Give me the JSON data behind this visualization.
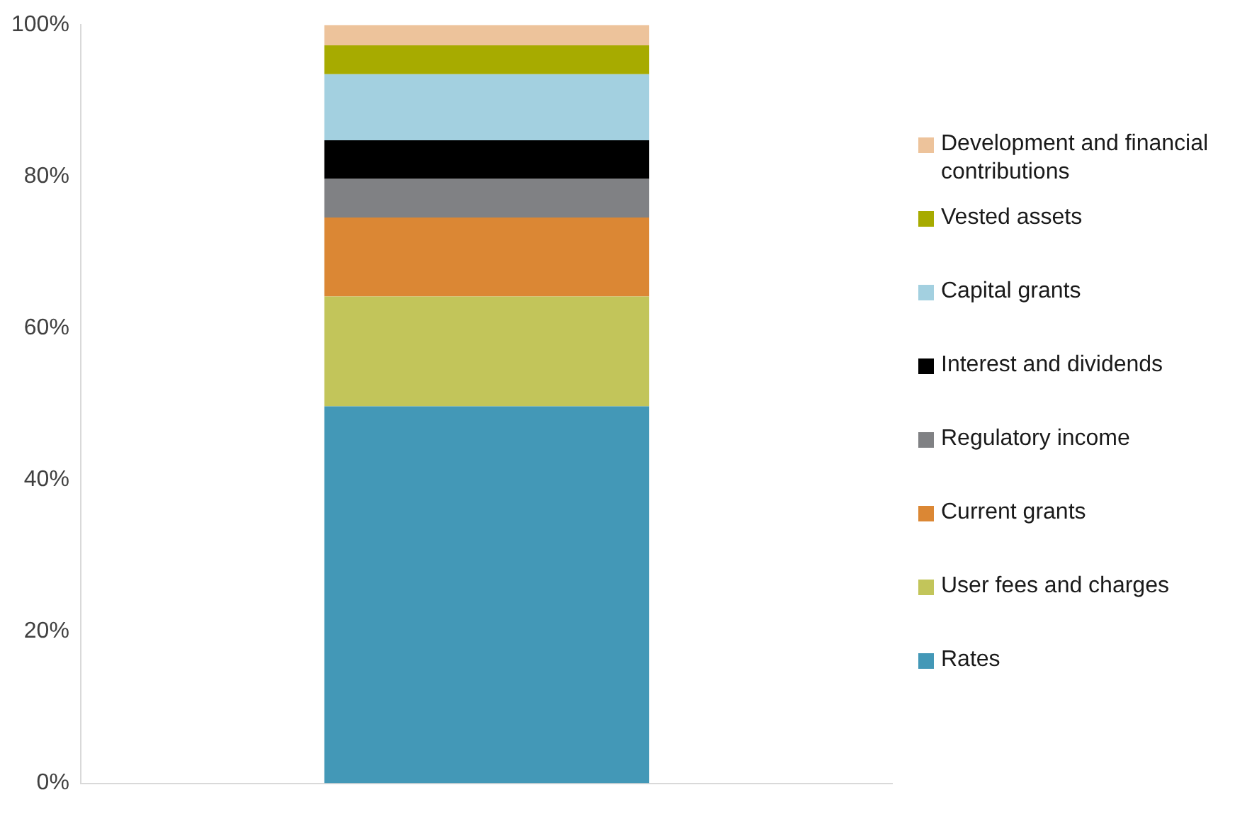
{
  "chart_data": {
    "type": "bar",
    "stacked": true,
    "categories": [
      null
    ],
    "series": [
      {
        "name": "Rates",
        "color": "#4398b7",
        "values": [
          49.7
        ]
      },
      {
        "name": "User fees and charges",
        "color": "#c2c55a",
        "values": [
          14.5
        ]
      },
      {
        "name": "Current grants",
        "color": "#db8734",
        "values": [
          10.4
        ]
      },
      {
        "name": "Regulatory income",
        "color": "#808184",
        "values": [
          5.1
        ]
      },
      {
        "name": "Interest and dividends",
        "color": "#000000",
        "values": [
          5.1
        ]
      },
      {
        "name": "Capital grants",
        "color": "#a3d0e0",
        "values": [
          8.7
        ]
      },
      {
        "name": "Vested assets",
        "color": "#a7ab00",
        "values": [
          3.8
        ]
      },
      {
        "name": "Development and financial contributions",
        "color": "#edc39b",
        "values": [
          2.7
        ]
      }
    ],
    "ylim": [
      0,
      100
    ],
    "yticks": [
      {
        "value": 0,
        "label": "0%"
      },
      {
        "value": 20,
        "label": "20%"
      },
      {
        "value": 40,
        "label": "40%"
      },
      {
        "value": 60,
        "label": "60%"
      },
      {
        "value": 80,
        "label": "80%"
      },
      {
        "value": 100,
        "label": "100%"
      }
    ],
    "grid": false,
    "legend": "right"
  }
}
